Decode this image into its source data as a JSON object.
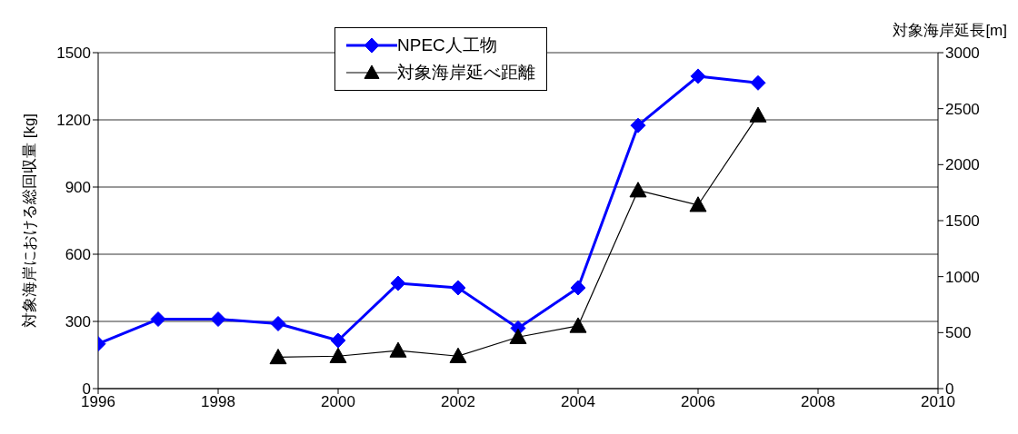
{
  "chart_data": {
    "type": "line",
    "ylabel": "対象海岸における総回収量 [kg]",
    "y2label": "対象海岸延長[m]",
    "x": [
      1996,
      1997,
      1998,
      1999,
      2000,
      2001,
      2002,
      2003,
      2004,
      2005,
      2006,
      2007
    ],
    "series": [
      {
        "name": "NPEC人工物",
        "color": "#0000ff",
        "marker": "diamond",
        "values": [
          200,
          310,
          310,
          290,
          215,
          470,
          450,
          270,
          450,
          1175,
          1395,
          1365
        ]
      },
      {
        "name": "対象海岸延べ距離",
        "color": "#000000",
        "marker": "triangle",
        "axis": "y2",
        "values": [
          null,
          null,
          null,
          280,
          290,
          340,
          290,
          460,
          560,
          1770,
          1640,
          2440
        ]
      }
    ],
    "xlim": [
      1996,
      2010
    ],
    "xticks": [
      1996,
      1998,
      2000,
      2002,
      2004,
      2006,
      2008,
      2010
    ],
    "ylim": [
      0,
      1500
    ],
    "yticks": [
      0,
      300,
      600,
      900,
      1200,
      1500
    ],
    "y2lim": [
      0,
      3000
    ],
    "y2ticks": [
      0,
      500,
      1000,
      1500,
      2000,
      2500,
      3000
    ],
    "grid": "y",
    "legend": "top",
    "line_style": "solid"
  }
}
